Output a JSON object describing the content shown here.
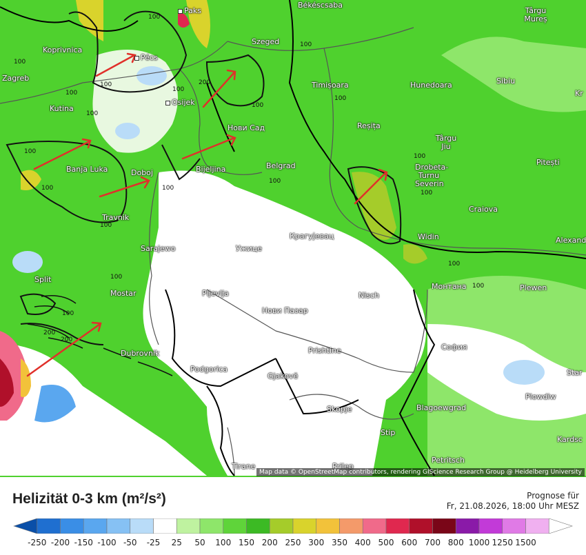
{
  "map": {
    "cities": [
      {
        "name": "Paks"
      },
      {
        "name": "Békéscsaba"
      },
      {
        "name": "Târgu Mureș"
      },
      {
        "name": "Koprivnica"
      },
      {
        "name": "Pécs"
      },
      {
        "name": "Szeged"
      },
      {
        "name": "Zagreb"
      },
      {
        "name": "Osijek"
      },
      {
        "name": "Timișoara"
      },
      {
        "name": "Hunedoara"
      },
      {
        "name": "Sibiu"
      },
      {
        "name": "Kutina"
      },
      {
        "name": "Нови Сад"
      },
      {
        "name": "Reșița"
      },
      {
        "name": "Târgu Jiu"
      },
      {
        "name": "Banja Luka"
      },
      {
        "name": "Doboj"
      },
      {
        "name": "Bijeljina"
      },
      {
        "name": "Belgrad"
      },
      {
        "name": "Drobeta-Turnu Severin"
      },
      {
        "name": "Pitești"
      },
      {
        "name": "Travnik"
      },
      {
        "name": "Craiova"
      },
      {
        "name": "Sarajewo"
      },
      {
        "name": "Ужице"
      },
      {
        "name": "Крагујевац"
      },
      {
        "name": "Widin"
      },
      {
        "name": "Alexand"
      },
      {
        "name": "Split"
      },
      {
        "name": "Mostar"
      },
      {
        "name": "Pljevlja"
      },
      {
        "name": "Монтана"
      },
      {
        "name": "Plewen"
      },
      {
        "name": "Nisch"
      },
      {
        "name": "Нови Пазар"
      },
      {
        "name": "Dubrovnik"
      },
      {
        "name": "Prishtine"
      },
      {
        "name": "София"
      },
      {
        "name": "Podgorica"
      },
      {
        "name": "Gjakovë"
      },
      {
        "name": "Star"
      },
      {
        "name": "Plowdiw"
      },
      {
        "name": "Skopje"
      },
      {
        "name": "Blagoewgrad"
      },
      {
        "name": "Stip"
      },
      {
        "name": "Kardsc"
      },
      {
        "name": "Tirane"
      },
      {
        "name": "Petritsch"
      },
      {
        "name": "Kr"
      },
      {
        "name": "Prilep"
      }
    ],
    "contour_labels": [
      "100",
      "100",
      "100",
      "100",
      "100",
      "100",
      "100",
      "100",
      "100",
      "200",
      "100",
      "100",
      "100",
      "100",
      "100",
      "100",
      "100",
      "100",
      "100",
      "100",
      "100",
      "200",
      "200"
    ],
    "attribution": "Map data © OpenStreetMap contributors, rendering GIScience Research Group @ Heidelberg University"
  },
  "footer": {
    "title": "Helizität 0-3 km (m²/s²)",
    "forecast_line1": "Prognose für",
    "forecast_line2": "Fr, 21.08.2026, 18:00 Uhr MESZ"
  },
  "legend": {
    "labels": [
      "-250",
      "-200",
      "-150",
      "-100",
      "-50",
      "-25",
      "25",
      "50",
      "100",
      "150",
      "200",
      "250",
      "300",
      "350",
      "400",
      "500",
      "600",
      "700",
      "800",
      "1000",
      "1250",
      "1500"
    ],
    "colors": [
      "#0a4fa8",
      "#1f6fd0",
      "#3a8ee6",
      "#5aa7ef",
      "#86c1f4",
      "#b9dcf8",
      "#ffffff",
      "#bff2a0",
      "#8ee66a",
      "#5fd43a",
      "#3cba24",
      "#a5cc2a",
      "#d9d32c",
      "#f2c23a",
      "#f49a6a",
      "#f06a8a",
      "#e0284f",
      "#b0102a",
      "#7a0618",
      "#8a1aa8",
      "#c23ad8",
      "#e07ae6",
      "#f0b0f0",
      "#ffffff"
    ]
  },
  "colors": {
    "arrow": "#e0302a",
    "region_outline": "#111111",
    "border": "#000000"
  }
}
